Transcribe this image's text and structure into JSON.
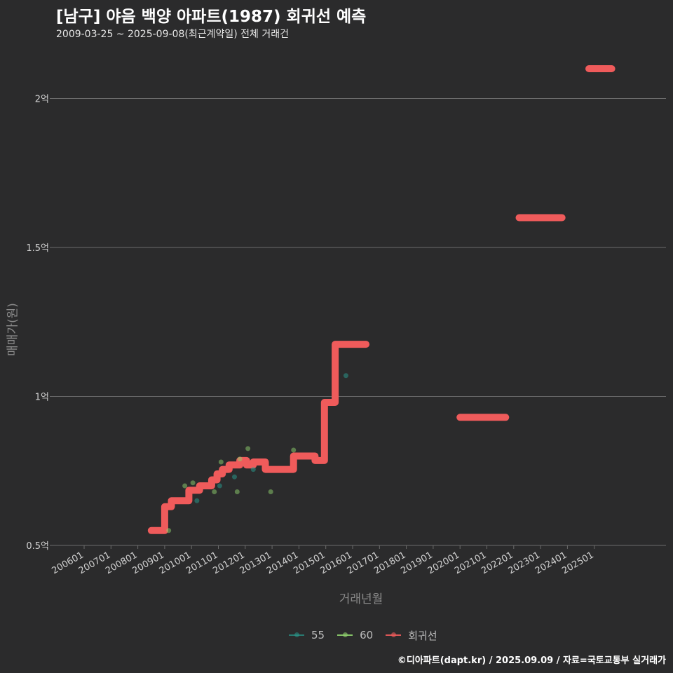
{
  "chart_data": {
    "type": "line",
    "title": "[남구] 야음 백양 아파트(1987) 회귀선 예측",
    "subtitle": "2009-03-25 ~ 2025-09-08(최근계약일) 전체 거래건",
    "xlabel": "거래년월",
    "ylabel": "매매가(원)",
    "footer": "©디아파트(dapt.kr) / 2025.09.09 / 자료=국토교통부 실거래가",
    "ylim": [
      0.5,
      2.15
    ],
    "y_ticks": [
      {
        "value": 0.5,
        "label": "0.5억"
      },
      {
        "value": 1.0,
        "label": "1억"
      },
      {
        "value": 1.5,
        "label": "1.5억"
      },
      {
        "value": 2.0,
        "label": "2억"
      }
    ],
    "x_ticks": [
      "200601",
      "200701",
      "200801",
      "200901",
      "201001",
      "201101",
      "201201",
      "201301",
      "201401",
      "201501",
      "201601",
      "201701",
      "201801",
      "201901",
      "202001",
      "202101",
      "202201",
      "202301",
      "202401",
      "202501"
    ],
    "colors": {
      "55": "#2a9d8f",
      "60": "#8fd16e",
      "regression": "#ef5b5b",
      "grid": "#6b6b6b"
    },
    "legend": [
      {
        "key": "55",
        "label": "55"
      },
      {
        "key": "60",
        "label": "60"
      },
      {
        "key": "regression",
        "label": "회귀선"
      }
    ],
    "series": [
      {
        "name": "회귀선",
        "segments": [
          [
            [
              2008.5,
              0.55
            ],
            [
              2009.0,
              0.55
            ],
            [
              2009.0,
              0.63
            ],
            [
              2009.25,
              0.63
            ],
            [
              2009.25,
              0.65
            ],
            [
              2009.9,
              0.65
            ],
            [
              2009.9,
              0.685
            ],
            [
              2010.3,
              0.685
            ],
            [
              2010.3,
              0.7
            ],
            [
              2010.75,
              0.7
            ],
            [
              2010.75,
              0.72
            ],
            [
              2010.95,
              0.72
            ],
            [
              2010.95,
              0.74
            ],
            [
              2011.15,
              0.74
            ],
            [
              2011.15,
              0.755
            ],
            [
              2011.4,
              0.755
            ],
            [
              2011.4,
              0.77
            ],
            [
              2011.8,
              0.77
            ],
            [
              2011.8,
              0.785
            ],
            [
              2012.05,
              0.785
            ],
            [
              2012.05,
              0.77
            ],
            [
              2012.3,
              0.77
            ],
            [
              2012.3,
              0.78
            ],
            [
              2012.75,
              0.78
            ],
            [
              2012.75,
              0.755
            ],
            [
              2013.8,
              0.755
            ],
            [
              2013.8,
              0.8
            ],
            [
              2014.6,
              0.8
            ],
            [
              2014.6,
              0.785
            ],
            [
              2014.95,
              0.785
            ],
            [
              2014.95,
              0.98
            ],
            [
              2015.35,
              0.98
            ],
            [
              2015.35,
              1.175
            ],
            [
              2016.5,
              1.175
            ]
          ],
          [
            [
              2020.0,
              0.93
            ],
            [
              2021.7,
              0.93
            ]
          ],
          [
            [
              2022.2,
              1.6
            ],
            [
              2023.8,
              1.6
            ]
          ],
          [
            [
              2024.8,
              2.1
            ],
            [
              2025.65,
              2.1
            ]
          ]
        ]
      },
      {
        "name": "55",
        "points": [
          [
            2010.2,
            0.65
          ],
          [
            2011.05,
            0.7
          ],
          [
            2011.6,
            0.73
          ],
          [
            2012.3,
            0.755
          ],
          [
            2015.75,
            1.07
          ]
        ]
      },
      {
        "name": "60",
        "points": [
          [
            2009.15,
            0.55
          ],
          [
            2009.75,
            0.7
          ],
          [
            2010.05,
            0.71
          ],
          [
            2010.85,
            0.68
          ],
          [
            2011.1,
            0.78
          ],
          [
            2011.7,
            0.68
          ],
          [
            2011.8,
            0.79
          ],
          [
            2012.1,
            0.825
          ],
          [
            2012.95,
            0.68
          ],
          [
            2013.8,
            0.82
          ]
        ]
      }
    ]
  }
}
